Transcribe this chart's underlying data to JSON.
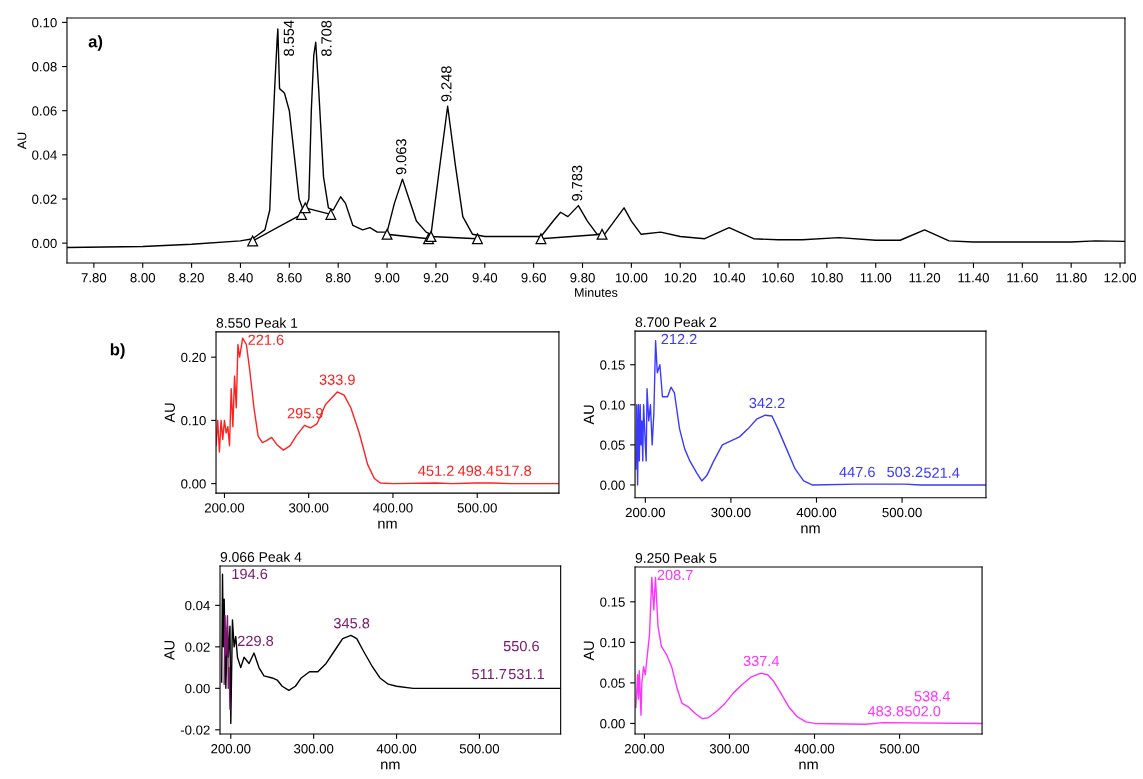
{
  "chart_data": [
    {
      "type": "line",
      "xlabel": "Minutes",
      "ylabel": "AU",
      "xlim": [
        7.69,
        12.02
      ],
      "ylim": [
        -0.009,
        0.102
      ],
      "xticks": [
        {
          "value": 7.8,
          "label": "7.80"
        },
        {
          "value": 8.0,
          "label": "8.00"
        },
        {
          "value": 8.2,
          "label": "8.20"
        },
        {
          "value": 8.4,
          "label": "8.40"
        },
        {
          "value": 8.6,
          "label": "8.60"
        },
        {
          "value": 8.8,
          "label": "8.80"
        },
        {
          "value": 9.0,
          "label": "9.00"
        },
        {
          "value": 9.2,
          "label": "9.20"
        },
        {
          "value": 9.4,
          "label": "9.40"
        },
        {
          "value": 9.6,
          "label": "9.60"
        },
        {
          "value": 9.8,
          "label": "9.80"
        },
        {
          "value": 10.0,
          "label": "10.00"
        },
        {
          "value": 10.2,
          "label": "10.20"
        },
        {
          "value": 10.4,
          "label": "10.40"
        },
        {
          "value": 10.6,
          "label": "10.60"
        },
        {
          "value": 10.8,
          "label": "10.80"
        },
        {
          "value": 11.0,
          "label": "11.00"
        },
        {
          "value": 11.2,
          "label": "11.20"
        },
        {
          "value": 11.4,
          "label": "11.40"
        },
        {
          "value": 11.6,
          "label": "11.60"
        },
        {
          "value": 11.8,
          "label": "11.80"
        },
        {
          "value": 12.0,
          "label": "12.00"
        }
      ],
      "yticks": [
        {
          "value": 0,
          "label": "0.00"
        },
        {
          "value": 0.02,
          "label": "0.02"
        },
        {
          "value": 0.04,
          "label": "0.04"
        },
        {
          "value": 0.06,
          "label": "0.06"
        },
        {
          "value": 0.08,
          "label": "0.08"
        },
        {
          "value": 0.1,
          "label": "0.10"
        }
      ],
      "grid": false,
      "legend": false,
      "line_style": "solid",
      "series": [
        {
          "color": "#000000",
          "marker": "none",
          "x": [
            7.69,
            8.0,
            8.2,
            8.4,
            8.45,
            8.5,
            8.52,
            8.53,
            8.54,
            8.55,
            8.553,
            8.56,
            8.58,
            8.6,
            8.62,
            8.64,
            8.66,
            8.68,
            8.69,
            8.7,
            8.708,
            8.72,
            8.74,
            8.76,
            8.78,
            8.81,
            8.83,
            8.86,
            8.9,
            8.93,
            8.96,
            9.0,
            9.03,
            9.063,
            9.09,
            9.12,
            9.16,
            9.18,
            9.21,
            9.248,
            9.28,
            9.31,
            9.35,
            9.4,
            9.5,
            9.63,
            9.68,
            9.71,
            9.74,
            9.783,
            9.82,
            9.86,
            9.89,
            9.93,
            9.97,
            10.0,
            10.04,
            10.12,
            10.2,
            10.3,
            10.4,
            10.5,
            10.6,
            10.7,
            10.85,
            11.0,
            11.1,
            11.2,
            11.3,
            11.4,
            11.6,
            11.8,
            11.9,
            12.02
          ],
          "values": [
            -0.002,
            -0.0015,
            -0.0005,
            0.001,
            0.002,
            0.006,
            0.015,
            0.045,
            0.07,
            0.092,
            0.097,
            0.07,
            0.068,
            0.06,
            0.04,
            0.02,
            0.014,
            0.02,
            0.06,
            0.085,
            0.091,
            0.07,
            0.03,
            0.016,
            0.015,
            0.021,
            0.018,
            0.008,
            0.006,
            0.007,
            0.005,
            0.005,
            0.018,
            0.029,
            0.02,
            0.01,
            0.005,
            0.004,
            0.03,
            0.062,
            0.035,
            0.012,
            0.004,
            0.003,
            0.003,
            0.003,
            0.01,
            0.014,
            0.012,
            0.017,
            0.01,
            0.004,
            0.004,
            0.01,
            0.016,
            0.01,
            0.004,
            0.005,
            0.003,
            0.002,
            0.007,
            0.002,
            0.0015,
            0.0015,
            0.0025,
            0.0013,
            0.0013,
            0.006,
            0.001,
            0.0005,
            0.0005,
            0.0005,
            0.001,
            0.0008
          ]
        },
        {
          "color": "#000000",
          "marker": "triangle",
          "x": [
            8.45,
            8.65,
            8.665,
            8.77,
            8.78,
            9.0,
            9.17,
            9.18,
            9.37,
            9.38,
            9.63,
            9.88
          ],
          "values": [
            0.001,
            0.013,
            0.016,
            0.013,
            null,
            0.004,
            0.002,
            0.003,
            0.002,
            null,
            0.002,
            0.004
          ]
        }
      ],
      "annotations": [
        "a)",
        {
          "text": "8.554",
          "x": 8.554,
          "y": 0.097
        },
        {
          "text": "8.708",
          "x": 8.708,
          "y": 0.091
        },
        {
          "text": "9.063",
          "x": 9.063,
          "y": 0.029
        },
        {
          "text": "9.248",
          "x": 9.248,
          "y": 0.062
        },
        {
          "text": "9.783",
          "x": 9.783,
          "y": 0.017
        }
      ]
    },
    {
      "type": "line",
      "title": "8.550 Peak 1",
      "xlabel": "nm",
      "ylabel": "AU",
      "xlim": [
        190,
        597
      ],
      "ylim": [
        -0.015,
        0.24
      ],
      "xticks": [
        {
          "value": 200,
          "label": "200.00"
        },
        {
          "value": 300,
          "label": "300.00"
        },
        {
          "value": 400,
          "label": "400.00"
        },
        {
          "value": 500,
          "label": "500.00"
        }
      ],
      "yticks": [
        {
          "value": 0,
          "label": "0.00"
        },
        {
          "value": 0.1,
          "label": "0.10"
        },
        {
          "value": 0.2,
          "label": "0.20"
        }
      ],
      "grid": false,
      "legend": false,
      "line_style": "solid",
      "series": [
        {
          "color": "#ff2020",
          "marker": "none",
          "x": [
            190,
            192,
            194,
            196,
            198,
            200,
            202,
            204,
            206,
            208,
            210,
            212,
            214,
            216,
            218,
            221.6,
            226,
            230,
            235,
            240,
            245,
            250,
            256,
            262,
            270,
            278,
            285,
            295,
            302,
            310,
            320,
            333.9,
            342,
            350,
            360,
            370,
            378,
            385,
            400,
            451,
            470,
            498,
            518,
            540,
            597
          ],
          "values": [
            0.06,
            0.1,
            0.05,
            0.1,
            0.07,
            0.1,
            0.08,
            0.09,
            0.06,
            0.15,
            0.09,
            0.17,
            0.12,
            0.22,
            0.2,
            0.23,
            0.22,
            0.18,
            0.12,
            0.075,
            0.065,
            0.068,
            0.073,
            0.062,
            0.053,
            0.06,
            0.075,
            0.092,
            0.088,
            0.095,
            0.125,
            0.145,
            0.14,
            0.12,
            0.08,
            0.03,
            0.008,
            0.001,
            0.0,
            0.001,
            0.0,
            0.001,
            0.001,
            0.0,
            0.0
          ]
        }
      ],
      "annotations": [
        "b)",
        {
          "text": "221.6",
          "x": 221.6,
          "y": 0.23
        },
        {
          "text": "295.9",
          "x": 295.9,
          "y": 0.092
        },
        {
          "text": "333.9",
          "x": 333.9,
          "y": 0.145
        },
        {
          "text": "451.2",
          "x": 451.2,
          "y": 0.001
        },
        {
          "text": "498.4",
          "x": 498.4,
          "y": 0.001
        },
        {
          "text": "517.8",
          "x": 517.8,
          "y": 0.001
        }
      ]
    },
    {
      "type": "line",
      "title": "8.700 Peak 2",
      "xlabel": "nm",
      "ylabel": "AU",
      "xlim": [
        188,
        598
      ],
      "ylim": [
        -0.016,
        0.192
      ],
      "xticks": [
        {
          "value": 200,
          "label": "200.00"
        },
        {
          "value": 300,
          "label": "300.00"
        },
        {
          "value": 400,
          "label": "400.00"
        },
        {
          "value": 500,
          "label": "500.00"
        }
      ],
      "yticks": [
        {
          "value": 0,
          "label": "0.00"
        },
        {
          "value": 0.05,
          "label": "0.05"
        },
        {
          "value": 0.1,
          "label": "0.10"
        },
        {
          "value": 0.15,
          "label": "0.15"
        }
      ],
      "grid": false,
      "legend": false,
      "line_style": "solid",
      "series": [
        {
          "color": "#3a3aff",
          "marker": "none",
          "x": [
            189,
            190,
            191,
            192,
            193,
            194,
            195,
            196,
            197,
            198,
            200,
            201,
            202,
            204,
            206,
            208,
            210,
            212,
            214,
            217,
            220,
            226,
            230,
            234,
            240,
            246,
            252,
            260,
            266,
            272,
            280,
            290,
            300,
            310,
            320,
            330,
            340,
            348,
            355,
            365,
            375,
            385,
            395,
            447.6,
            503.2,
            521.4,
            598
          ],
          "values": [
            0.02,
            0.1,
            0.0,
            0.1,
            0.03,
            0.1,
            0.05,
            0.08,
            0.03,
            0.1,
            0.05,
            0.03,
            0.12,
            0.08,
            0.1,
            0.05,
            0.09,
            0.18,
            0.14,
            0.15,
            0.11,
            0.11,
            0.122,
            0.115,
            0.07,
            0.045,
            0.03,
            0.015,
            0.005,
            0.012,
            0.03,
            0.05,
            0.055,
            0.06,
            0.07,
            0.082,
            0.087,
            0.086,
            0.07,
            0.045,
            0.02,
            0.005,
            0.0,
            0.001,
            0.001,
            0.0,
            0.0
          ]
        }
      ],
      "annotations": [
        {
          "text": "212.2",
          "x": 212.2,
          "y": 0.17
        },
        {
          "text": "342.2",
          "x": 342.2,
          "y": 0.087
        },
        {
          "text": "447.6",
          "x": 447.6,
          "y": 0.001
        },
        {
          "text": "503.2",
          "x": 503.2,
          "y": 0.001
        },
        {
          "text": "521.4",
          "x": 521.4,
          "y": 0.0
        }
      ]
    },
    {
      "type": "line",
      "title": "9.066 Peak 4",
      "xlabel": "nm",
      "ylabel": "AU",
      "xlim": [
        187,
        598
      ],
      "ylim": [
        -0.022,
        0.059
      ],
      "xticks": [
        {
          "value": 200,
          "label": "200.00"
        },
        {
          "value": 300,
          "label": "300.00"
        },
        {
          "value": 400,
          "label": "400.00"
        },
        {
          "value": 500,
          "label": "500.00"
        }
      ],
      "yticks": [
        {
          "value": -0.02,
          "label": "-0.02"
        },
        {
          "value": 0,
          "label": "0.00"
        },
        {
          "value": 0.02,
          "label": "0.02"
        },
        {
          "value": 0.04,
          "label": "0.04"
        }
      ],
      "grid": false,
      "legend": false,
      "line_style": "solid",
      "series": [
        {
          "color": "#000000",
          "marker": "none",
          "x": [
            189,
            190,
            191,
            192,
            194,
            196,
            197,
            199,
            200,
            202,
            204,
            206,
            208,
            212,
            216,
            222,
            228,
            234,
            240,
            250,
            256,
            262,
            270,
            278,
            285,
            295,
            305,
            315,
            325,
            335,
            345,
            352,
            360,
            370,
            380,
            390,
            400,
            420,
            500,
            598
          ],
          "values": [
            0.003,
            0.055,
            0.02,
            0.043,
            0.0,
            0.03,
            0.015,
            0.03,
            -0.017,
            0.033,
            0.02,
            0.025,
            0.015,
            0.01,
            0.015,
            0.012,
            0.017,
            0.01,
            0.006,
            0.005,
            0.004,
            0.001,
            -0.001,
            0.001,
            0.005,
            0.008,
            0.008,
            0.012,
            0.018,
            0.024,
            0.0255,
            0.024,
            0.018,
            0.011,
            0.005,
            0.002,
            0.001,
            0.0,
            0.0,
            0.0
          ]
        },
        {
          "color": "#7b1a6f",
          "marker": "none",
          "x": [
            192,
            193,
            194,
            196,
            197,
            198,
            199
          ],
          "values": [
            0.002,
            0.035,
            0.016,
            0.035,
            0.0,
            0.01,
            -0.01
          ]
        }
      ],
      "annotations": [
        {
          "text": "194.6",
          "x": 194.6,
          "y": 0.05
        },
        {
          "text": "229.8",
          "x": 229.8,
          "y": 0.017
        },
        {
          "text": "345.8",
          "x": 345.8,
          "y": 0.0255
        },
        {
          "text": "511.7",
          "x": 511.7,
          "y": 0.001
        },
        {
          "text": "531.1",
          "x": 531.1,
          "y": 0.001
        },
        {
          "text": "550.6",
          "x": 550.6,
          "y": 0.0
        }
      ]
    },
    {
      "type": "line",
      "title": "9.250 Peak 5",
      "xlabel": "nm",
      "ylabel": "AU",
      "xlim": [
        189,
        597
      ],
      "ylim": [
        -0.013,
        0.193
      ],
      "xticks": [
        {
          "value": 200,
          "label": "200.00"
        },
        {
          "value": 300,
          "label": "300.00"
        },
        {
          "value": 400,
          "label": "400.00"
        },
        {
          "value": 500,
          "label": "500.00"
        }
      ],
      "yticks": [
        {
          "value": 0,
          "label": "0.00"
        },
        {
          "value": 0.05,
          "label": "0.05"
        },
        {
          "value": 0.1,
          "label": "0.10"
        },
        {
          "value": 0.15,
          "label": "0.15"
        }
      ],
      "grid": false,
      "legend": false,
      "line_style": "solid",
      "series": [
        {
          "color": "#ff33ff",
          "marker": "none",
          "x": [
            190,
            192,
            193,
            194,
            196,
            197,
            199,
            201,
            203,
            206,
            208.7,
            211,
            213,
            216,
            220,
            226,
            232,
            238,
            244,
            252,
            260,
            268,
            275,
            285,
            295,
            305,
            315,
            325,
            337,
            345,
            352,
            360,
            370,
            380,
            390,
            400,
            460,
            480,
            597
          ],
          "values": [
            0.02,
            0.06,
            0.03,
            0.065,
            0.01,
            0.05,
            0.07,
            0.06,
            0.08,
            0.11,
            0.18,
            0.14,
            0.18,
            0.12,
            0.095,
            0.085,
            0.07,
            0.045,
            0.025,
            0.02,
            0.012,
            0.006,
            0.007,
            0.015,
            0.025,
            0.038,
            0.048,
            0.057,
            0.062,
            0.06,
            0.052,
            0.038,
            0.02,
            0.008,
            0.002,
            0.0,
            -0.001,
            0.001,
            0.0
          ]
        }
      ],
      "annotations": [
        {
          "text": "208.7",
          "x": 208.7,
          "y": 0.175
        },
        {
          "text": "337.4",
          "x": 337.4,
          "y": 0.062
        },
        {
          "text": "483.8",
          "x": 483.8,
          "y": 0.0
        },
        {
          "text": "502.0",
          "x": 502.0,
          "y": 0.0
        },
        {
          "text": "538.4",
          "x": 538.4,
          "y": 0.0
        }
      ]
    }
  ]
}
